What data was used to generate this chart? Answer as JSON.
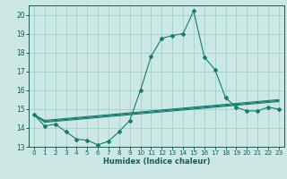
{
  "xlabel": "Humidex (Indice chaleur)",
  "background_color": "#cce8e5",
  "grid_color": "#99ccc8",
  "line_color": "#1a7a6e",
  "xlim": [
    -0.5,
    23.5
  ],
  "ylim": [
    13,
    20.5
  ],
  "yticks": [
    13,
    14,
    15,
    16,
    17,
    18,
    19,
    20
  ],
  "xticks": [
    0,
    1,
    2,
    3,
    4,
    5,
    6,
    7,
    8,
    9,
    10,
    11,
    12,
    13,
    14,
    15,
    16,
    17,
    18,
    19,
    20,
    21,
    22,
    23
  ],
  "series1": {
    "x": [
      0,
      1,
      2,
      3,
      4,
      5,
      6,
      7,
      8,
      9,
      10,
      11,
      12,
      13,
      14,
      15,
      16,
      17,
      18,
      19,
      20,
      21,
      22,
      23
    ],
    "y": [
      14.7,
      14.1,
      14.2,
      13.8,
      13.4,
      13.35,
      13.1,
      13.3,
      13.8,
      14.4,
      16.0,
      17.8,
      18.75,
      18.9,
      19.0,
      20.2,
      17.75,
      17.1,
      15.6,
      15.1,
      14.9,
      14.9,
      15.1,
      15.0
    ]
  },
  "series2": {
    "x": [
      0,
      1,
      2,
      3,
      4,
      5,
      6,
      7,
      8,
      9,
      10,
      11,
      12,
      13,
      14,
      15,
      16,
      17,
      18,
      19,
      20,
      21,
      22,
      23
    ],
    "y": [
      14.7,
      14.3,
      14.35,
      14.4,
      14.45,
      14.5,
      14.55,
      14.6,
      14.65,
      14.7,
      14.75,
      14.8,
      14.85,
      14.9,
      14.95,
      15.0,
      15.05,
      15.1,
      15.15,
      15.2,
      15.25,
      15.3,
      15.35,
      15.4
    ]
  },
  "series3": {
    "x": [
      0,
      1,
      2,
      3,
      4,
      5,
      6,
      7,
      8,
      9,
      10,
      11,
      12,
      13,
      14,
      15,
      16,
      17,
      18,
      19,
      20,
      21,
      22,
      23
    ],
    "y": [
      14.7,
      14.35,
      14.4,
      14.45,
      14.5,
      14.55,
      14.6,
      14.65,
      14.7,
      14.75,
      14.8,
      14.85,
      14.9,
      14.95,
      15.0,
      15.05,
      15.1,
      15.15,
      15.2,
      15.25,
      15.3,
      15.35,
      15.4,
      15.45
    ]
  },
  "series4": {
    "x": [
      0,
      1,
      2,
      3,
      4,
      5,
      6,
      7,
      8,
      9,
      10,
      11,
      12,
      13,
      14,
      15,
      16,
      17,
      18,
      19,
      20,
      21,
      22,
      23
    ],
    "y": [
      14.7,
      14.4,
      14.45,
      14.5,
      14.55,
      14.6,
      14.65,
      14.7,
      14.75,
      14.8,
      14.85,
      14.9,
      14.95,
      15.0,
      15.05,
      15.1,
      15.15,
      15.2,
      15.25,
      15.3,
      15.35,
      15.4,
      15.45,
      15.5
    ]
  }
}
